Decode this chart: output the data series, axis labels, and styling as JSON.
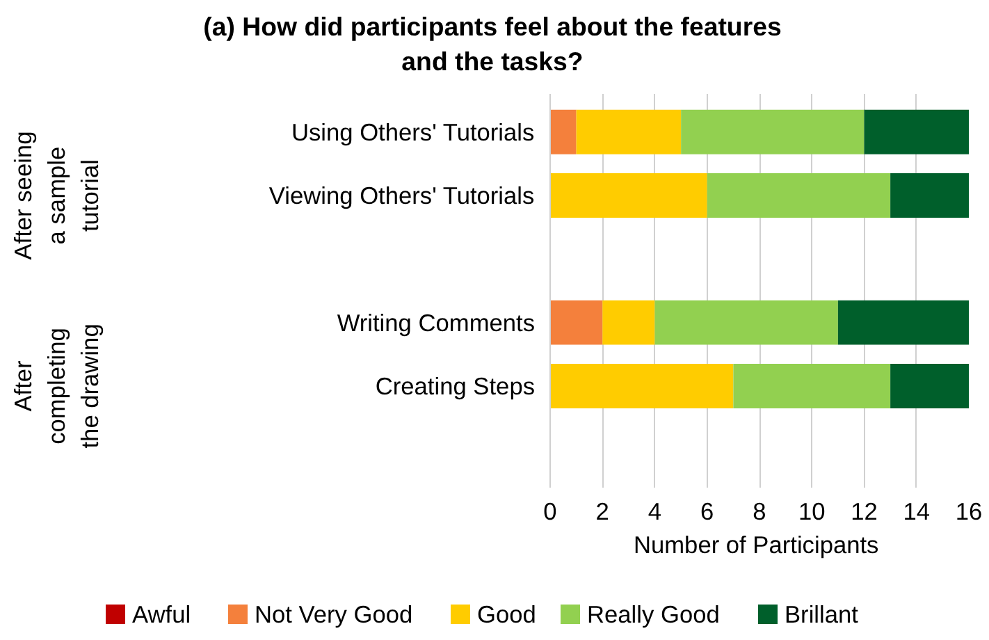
{
  "chart_data": {
    "type": "bar",
    "orientation": "horizontal",
    "stacked": true,
    "title": "(a) How did participants feel about the features and the tasks?",
    "xlabel": "Number of  Participants",
    "categories": [
      "Using Others' Tutorials",
      "Viewing Others' Tutorials",
      null,
      "Writing Comments",
      "Creating Steps",
      null
    ],
    "series": [
      {
        "name": "Awful",
        "color": "#c00000",
        "values": [
          0,
          0,
          null,
          0,
          0,
          null
        ]
      },
      {
        "name": "Not Very Good",
        "color": "#f4803c",
        "values": [
          1,
          0,
          null,
          2,
          0,
          null
        ]
      },
      {
        "name": "Good",
        "color": "#ffcc00",
        "values": [
          4,
          6,
          null,
          2,
          7,
          null
        ]
      },
      {
        "name": "Really Good",
        "color": "#92d050",
        "values": [
          7,
          7,
          null,
          7,
          6,
          null
        ]
      },
      {
        "name": "Brillant",
        "color": "#005f2b",
        "values": [
          4,
          3,
          null,
          5,
          3,
          null
        ]
      }
    ],
    "xlim": [
      0,
      16
    ],
    "xticks": [
      0,
      2,
      4,
      6,
      8,
      10,
      12,
      14,
      16
    ],
    "annotations": [
      "After seeing a sample tutorial",
      "After completing the drawing"
    ],
    "grid": "x",
    "legend": "bottom"
  }
}
